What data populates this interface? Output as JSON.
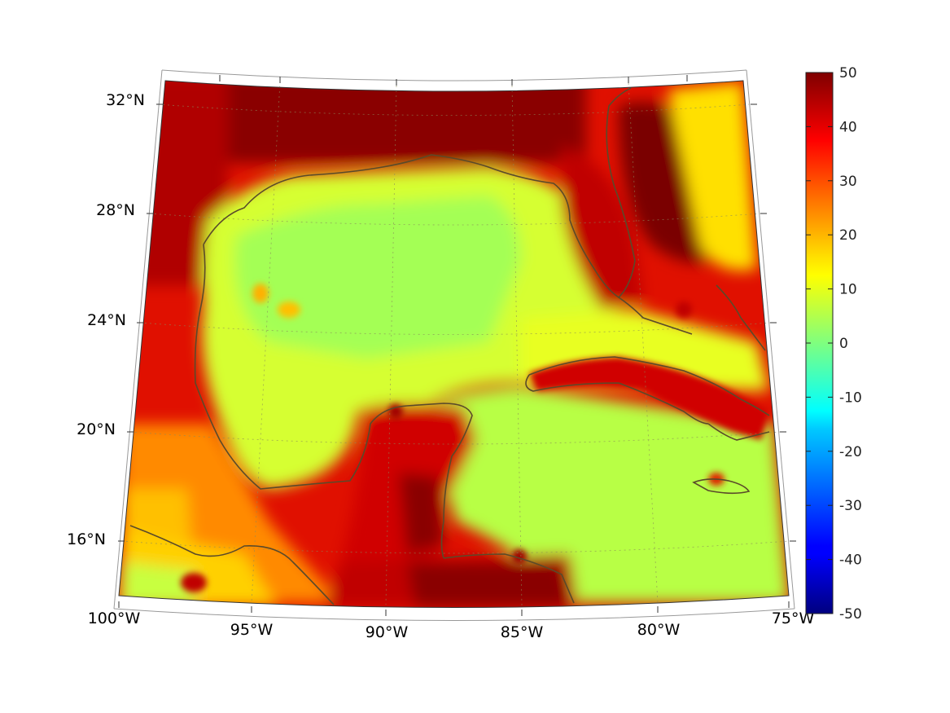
{
  "chart_data": {
    "type": "heatmap",
    "title": "",
    "projection": "conic map, Gulf of Mexico and Caribbean region",
    "lat_ticks": [
      "32°N",
      "28°N",
      "24°N",
      "20°N",
      "16°N"
    ],
    "lon_ticks": [
      "100°W",
      "95°W",
      "90°W",
      "85°W",
      "80°W",
      "75°W"
    ],
    "lon_range": [
      -100,
      -75
    ],
    "lat_range": [
      14,
      33
    ],
    "colorbar": {
      "min": -50,
      "max": 50,
      "ticks": [
        "50",
        "40",
        "30",
        "20",
        "10",
        "0",
        "-10",
        "-20",
        "-30",
        "-40",
        "-50"
      ],
      "colormap": "jet"
    },
    "grid": true,
    "coastline_color": "#5a4a2a",
    "field_description_levels": {
      "land": 45,
      "coastal_band": 35,
      "open_gulf": 8,
      "caribbean_sea": 6
    }
  }
}
